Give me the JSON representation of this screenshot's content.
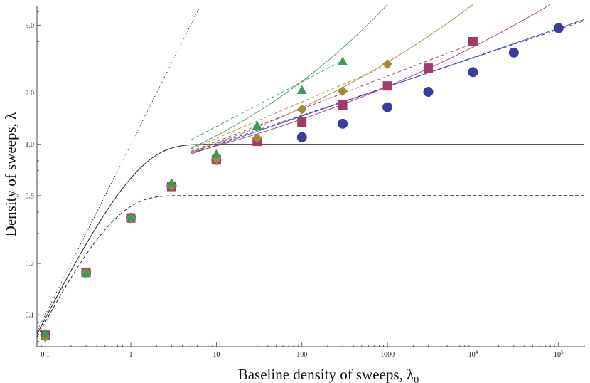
{
  "chart_data": {
    "type": "scatter",
    "xscale": "log",
    "yscale": "log",
    "xlim": [
      0.08,
      200000
    ],
    "ylim": [
      0.065,
      6.5
    ],
    "xlabel": "Baseline density of sweeps, λ",
    "xlabel_sub": "0",
    "ylabel": "Density of sweeps, λ",
    "xticks": [
      {
        "value": 0.1,
        "label": "0.1"
      },
      {
        "value": 1,
        "label": "1"
      },
      {
        "value": 10,
        "label": "10"
      },
      {
        "value": 100,
        "label": "100"
      },
      {
        "value": 1000,
        "label": "1000"
      },
      {
        "value": 10000,
        "label": "10",
        "exp": "4"
      },
      {
        "value": 100000,
        "label": "10",
        "exp": "5"
      }
    ],
    "yticks": [
      {
        "value": 0.1,
        "label": "0.1"
      },
      {
        "value": 0.2,
        "label": "0.2"
      },
      {
        "value": 0.5,
        "label": "0.5"
      },
      {
        "value": 1.0,
        "label": "1.0"
      },
      {
        "value": 2.0,
        "label": "2.0"
      },
      {
        "value": 5.0,
        "label": "5.0"
      }
    ],
    "colors": {
      "blue": "#3c3c9e",
      "magenta": "#a03c6c",
      "olive": "#a08a3a",
      "green": "#3c9a58",
      "black": "#222222"
    },
    "reference_curves": [
      {
        "kind": "dotted",
        "formula": "y = x",
        "color": "#222222"
      },
      {
        "kind": "solid",
        "formula": "y = 1 - exp(-x)",
        "color": "#222222"
      },
      {
        "kind": "dashed",
        "formula": "y = 0.5 (1 - exp(-2x))",
        "color": "#222222"
      }
    ],
    "series": [
      {
        "marker": "circle",
        "color": "#3c3c9e",
        "points": [
          [
            0.1,
            0.076
          ],
          [
            0.3,
            0.177
          ],
          [
            1,
            0.37
          ],
          [
            3,
            0.57
          ],
          [
            10,
            0.81
          ],
          [
            100,
            1.1
          ],
          [
            300,
            1.32
          ],
          [
            1000,
            1.65
          ],
          [
            3000,
            2.03
          ],
          [
            10000,
            2.65
          ],
          [
            30000,
            3.45
          ],
          [
            100000,
            4.8
          ]
        ],
        "fit_solid": [
          [
            5,
            0.875
          ],
          [
            200000,
            5.4
          ]
        ],
        "fit_dashed": [
          [
            5,
            0.895
          ],
          [
            200000,
            5.3
          ]
        ]
      },
      {
        "marker": "square",
        "color": "#a03c6c",
        "points": [
          [
            0.1,
            0.076
          ],
          [
            0.3,
            0.177
          ],
          [
            1,
            0.37
          ],
          [
            3,
            0.565
          ],
          [
            10,
            0.81
          ],
          [
            30,
            1.04
          ],
          [
            100,
            1.35
          ],
          [
            300,
            1.7
          ],
          [
            1000,
            2.2
          ],
          [
            3000,
            2.8
          ],
          [
            10000,
            4.0
          ]
        ],
        "fit_solid": [
          [
            5,
            0.89
          ],
          [
            80000,
            6.6
          ]
        ],
        "fit_dashed": [
          [
            5,
            0.91
          ],
          [
            10000,
            3.9
          ]
        ]
      },
      {
        "marker": "diamond",
        "color": "#a08a3a",
        "points": [
          [
            0.1,
            0.074
          ],
          [
            0.3,
            0.177
          ],
          [
            1,
            0.37
          ],
          [
            3,
            0.57
          ],
          [
            10,
            0.82
          ],
          [
            30,
            1.09
          ],
          [
            100,
            1.6
          ],
          [
            300,
            2.05
          ],
          [
            1000,
            2.95
          ]
        ],
        "fit_solid": [
          [
            5,
            0.9
          ],
          [
            10000,
            6.6
          ]
        ],
        "fit_dashed": [
          [
            5,
            0.935
          ],
          [
            1000,
            2.9
          ]
        ]
      },
      {
        "marker": "triangle",
        "color": "#3c9a58",
        "points": [
          [
            0.1,
            0.077
          ],
          [
            0.3,
            0.175
          ],
          [
            1,
            0.37
          ],
          [
            3,
            0.59
          ],
          [
            10,
            0.87
          ],
          [
            30,
            1.28
          ],
          [
            100,
            2.07
          ],
          [
            300,
            3.05
          ]
        ],
        "fit_solid": [
          [
            5,
            0.945
          ],
          [
            1000,
            6.6
          ]
        ],
        "fit_dashed": [
          [
            5,
            1.06
          ],
          [
            300,
            3.1
          ]
        ]
      }
    ]
  }
}
